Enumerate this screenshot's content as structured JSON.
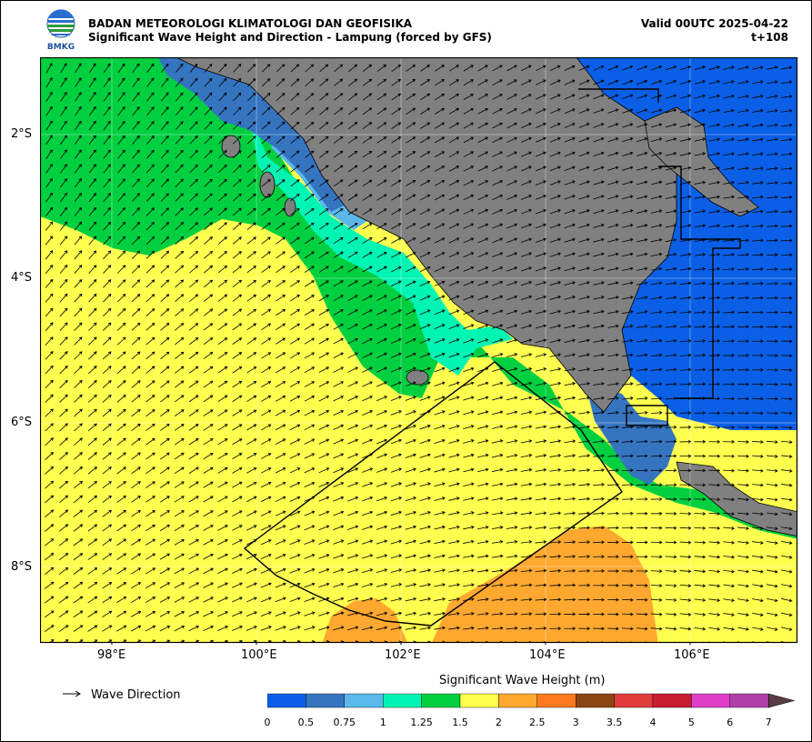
{
  "header": {
    "agency": "BADAN METEOROLOGI KLIMATOLOGI DAN GEOFISIKA",
    "product": "Significant Wave Height and Direction - Lampung (forced by GFS)",
    "valid": "Valid 00UTC 2025-04-22",
    "lead": "t+108"
  },
  "logo": {
    "text": "BMKG"
  },
  "map": {
    "lon_range": [
      97.0,
      107.5
    ],
    "lat_range": [
      -9.0,
      -1.0
    ],
    "x_ticks": [
      "98°E",
      "100°E",
      "102°E",
      "104°E",
      "106°E"
    ],
    "y_ticks": [
      "2°S",
      "4°S",
      "6°S",
      "8°S"
    ],
    "grid": true,
    "land_color": "#808080",
    "wave_direction_general": "north-east",
    "regions": [
      {
        "name": "open ocean",
        "range_m": "1.5 - 2",
        "color": "#ffff50"
      },
      {
        "name": "west Sumatra coast",
        "range_m": "1.25 - 1.5",
        "color": "#00d040"
      },
      {
        "name": "south of Sunda Strait",
        "range_m": "2 - 2.5",
        "color": "#ffa830"
      },
      {
        "name": "Java Sea",
        "range_m": "0 - 0.5",
        "color": "#0a64e6"
      }
    ]
  },
  "legend": {
    "arrow_label": "Wave Direction",
    "colorbar_title": "Significant Wave Height (m)",
    "levels": [
      "0",
      "0.5",
      "0.75",
      "1",
      "1.25",
      "1.5",
      "2",
      "2.5",
      "3",
      "3.5",
      "4",
      "5",
      "6",
      "7"
    ],
    "colors": [
      "#0a5fe6",
      "#3575c0",
      "#5ab9ea",
      "#00f5b4",
      "#00d040",
      "#ffff50",
      "#ffa830",
      "#ff7a20",
      "#8b4513",
      "#e03c3c",
      "#c81e32",
      "#e040c8",
      "#b040a8"
    ],
    "extend_color": "#5a3c46"
  }
}
